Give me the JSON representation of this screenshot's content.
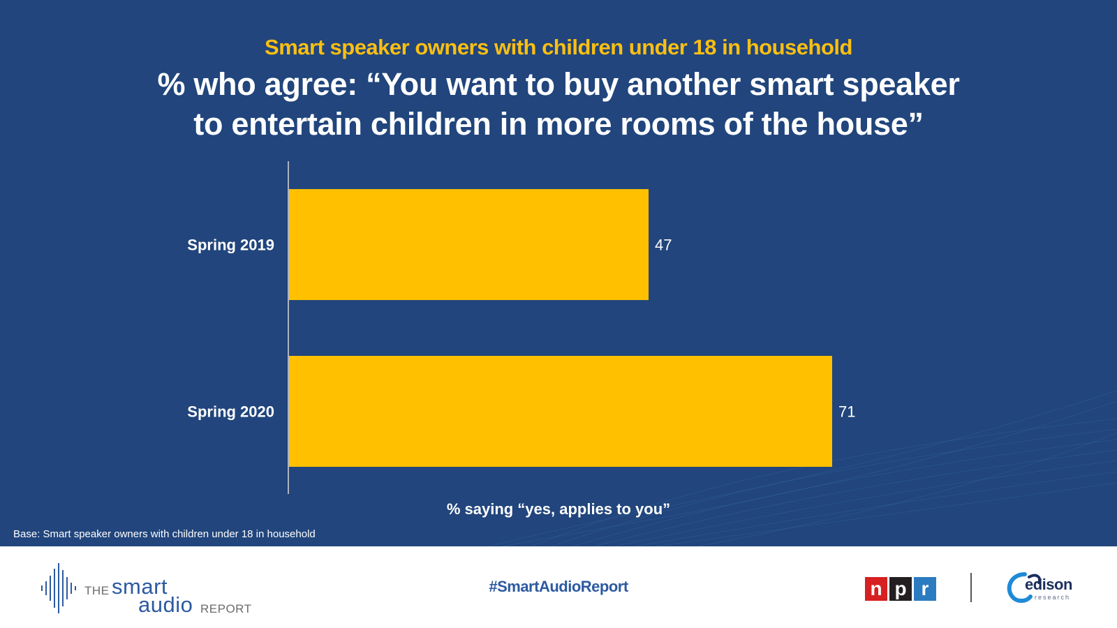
{
  "subtitle": "Smart speaker owners with children under 18 in household",
  "title_lines": [
    "% who agree: “You want to buy another smart speaker",
    "to entertain children in more rooms of the house”"
  ],
  "chart_data": {
    "type": "bar",
    "orientation": "horizontal",
    "categories": [
      "Spring 2019",
      "Spring 2020"
    ],
    "values": [
      47,
      71
    ],
    "data_labels": [
      "47",
      "71"
    ],
    "xlabel": "% saying “yes, applies to you”",
    "ylabel": "",
    "xlim": [
      0,
      100
    ],
    "grid": false,
    "bar_color": "#ffc000"
  },
  "base_note": "Base: Smart speaker owners with children under 18 in household",
  "footer": {
    "hashtag": "#SmartAudioReport",
    "logo_left": {
      "the": "THE",
      "smart": "smart",
      "audio": "audio",
      "report": "REPORT"
    },
    "npr_letters": [
      "n",
      "p",
      "r"
    ],
    "edison": {
      "word": "edison",
      "sub": "research"
    }
  },
  "colors": {
    "background": "#21457c",
    "accent": "#fbbf12",
    "bar": "#ffc000",
    "footer_blue": "#2c5aa0"
  }
}
